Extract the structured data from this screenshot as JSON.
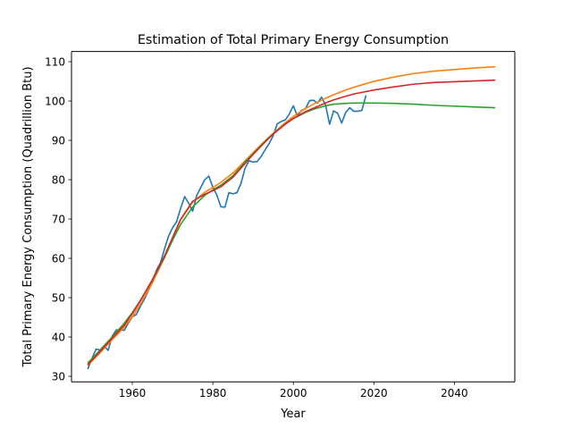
{
  "chart_data": {
    "type": "line",
    "title": "Estimation of Total Primary Energy Consumption",
    "xlabel": "Year",
    "ylabel": "Total Primary Energy Consumption (Quadrillion Btu)",
    "xlim": [
      1944.9,
      2055.0
    ],
    "ylim": [
      28.6,
      112.6
    ],
    "xticks": [
      1960,
      1980,
      2000,
      2020,
      2040
    ],
    "yticks": [
      30,
      40,
      50,
      60,
      70,
      80,
      90,
      100,
      110
    ],
    "grid": false,
    "legend": "none",
    "series": [
      {
        "color": "#1f77b4",
        "x": [
          1949,
          1950,
          1951,
          1952,
          1953,
          1954,
          1955,
          1956,
          1957,
          1958,
          1959,
          1960,
          1961,
          1962,
          1963,
          1964,
          1965,
          1966,
          1967,
          1968,
          1969,
          1970,
          1971,
          1972,
          1973,
          1974,
          1975,
          1976,
          1977,
          1978,
          1979,
          1980,
          1981,
          1982,
          1983,
          1984,
          1985,
          1986,
          1987,
          1988,
          1989,
          1990,
          1991,
          1992,
          1993,
          1994,
          1995,
          1996,
          1997,
          1998,
          1999,
          2000,
          2001,
          2002,
          2003,
          2004,
          2005,
          2006,
          2007,
          2008,
          2009,
          2010,
          2011,
          2012,
          2013,
          2014,
          2015,
          2016,
          2017,
          2018
        ],
        "y": [
          32.0,
          34.6,
          36.9,
          36.7,
          37.7,
          36.6,
          40.2,
          41.8,
          41.8,
          41.7,
          43.5,
          45.1,
          45.7,
          47.8,
          49.6,
          51.8,
          54.0,
          57.0,
          58.9,
          62.4,
          65.6,
          67.8,
          69.3,
          72.7,
          75.7,
          74.0,
          72.0,
          76.0,
          78.0,
          80.0,
          80.9,
          78.1,
          76.1,
          73.1,
          73.0,
          76.7,
          76.4,
          76.7,
          79.1,
          82.9,
          84.8,
          84.5,
          84.6,
          85.9,
          87.6,
          89.2,
          91.2,
          94.2,
          94.8,
          95.2,
          96.7,
          98.8,
          96.2,
          97.6,
          98.0,
          100.1,
          100.2,
          99.5,
          101.0,
          99.0,
          94.1,
          97.5,
          96.9,
          94.4,
          97.1,
          98.3,
          97.4,
          97.4,
          97.6,
          101.3
        ]
      },
      {
        "color": "#ff7f0e",
        "x": [
          1949,
          1950,
          1952,
          1955,
          1958,
          1960,
          1962,
          1965,
          1968,
          1970,
          1972,
          1975,
          1978,
          1980,
          1982,
          1985,
          1988,
          1990,
          1993,
          1995,
          1998,
          2000,
          2003,
          2005,
          2008,
          2010,
          2013,
          2015,
          2018,
          2020,
          2025,
          2030,
          2035,
          2040,
          2045,
          2050
        ],
        "y": [
          32.9,
          33.9,
          36.0,
          39.3,
          42.5,
          45.1,
          48.3,
          53.8,
          60.2,
          65.0,
          69.8,
          74.3,
          76.8,
          78.0,
          79.3,
          81.7,
          84.8,
          86.9,
          89.9,
          91.8,
          94.5,
          96.1,
          98.1,
          99.2,
          100.7,
          101.6,
          102.8,
          103.5,
          104.4,
          105.0,
          106.1,
          107.0,
          107.6,
          108.0,
          108.4,
          108.7
        ]
      },
      {
        "color": "#2ca02c",
        "x": [
          1949,
          1950,
          1952,
          1955,
          1958,
          1960,
          1962,
          1965,
          1968,
          1970,
          1972,
          1975,
          1978,
          1980,
          1982,
          1985,
          1988,
          1990,
          1993,
          1995,
          1998,
          2000,
          2003,
          2005,
          2008,
          2010,
          2013,
          2015,
          2018,
          2020,
          2025,
          2030,
          2035,
          2040,
          2045,
          2050
        ],
        "y": [
          33.5,
          34.5,
          36.7,
          40.0,
          43.5,
          46.2,
          49.3,
          54.4,
          60.2,
          64.6,
          68.6,
          73.1,
          76.0,
          77.4,
          78.6,
          81.0,
          84.5,
          86.6,
          89.8,
          91.7,
          94.2,
          95.5,
          97.1,
          97.9,
          98.8,
          99.2,
          99.4,
          99.5,
          99.5,
          99.5,
          99.4,
          99.2,
          98.9,
          98.7,
          98.5,
          98.3
        ]
      },
      {
        "color": "#d62728",
        "x": [
          1949,
          1950,
          1952,
          1955,
          1958,
          1960,
          1962,
          1965,
          1968,
          1970,
          1972,
          1975,
          1978,
          1980,
          1982,
          1985,
          1988,
          1990,
          1993,
          1995,
          1998,
          2000,
          2003,
          2005,
          2008,
          2010,
          2013,
          2015,
          2018,
          2020,
          2025,
          2030,
          2035,
          2040,
          2045,
          2050
        ],
        "y": [
          33.0,
          34.1,
          36.3,
          39.7,
          43.0,
          45.9,
          49.2,
          54.6,
          60.6,
          65.3,
          69.9,
          74.5,
          76.3,
          77.2,
          78.2,
          80.6,
          84.1,
          86.4,
          89.6,
          91.6,
          94.1,
          95.6,
          97.3,
          98.2,
          99.5,
          100.3,
          101.2,
          101.8,
          102.4,
          102.8,
          103.6,
          104.3,
          104.7,
          104.9,
          105.1,
          105.3
        ]
      }
    ]
  }
}
